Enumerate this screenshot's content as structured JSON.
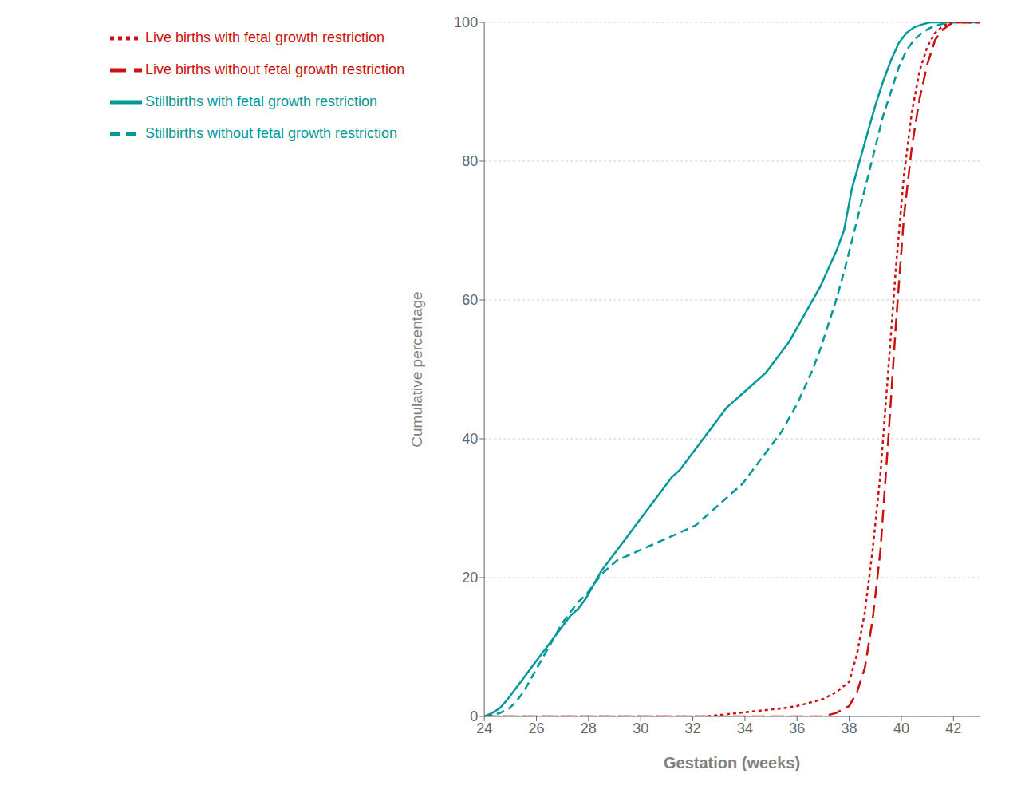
{
  "chart_data": {
    "type": "line",
    "xlabel": "Gestation (weeks)",
    "ylabel": "Cumulative percentage",
    "xlim": [
      24,
      43
    ],
    "ylim": [
      0,
      100
    ],
    "xticks": [
      24,
      26,
      28,
      30,
      32,
      34,
      36,
      38,
      40,
      42
    ],
    "yticks": [
      0,
      20,
      40,
      60,
      80,
      100
    ],
    "grid": "y",
    "legend": "top",
    "series": [
      {
        "name": "Stillbirths with fetal growth restriction",
        "color": "#009999",
        "line_style": "solid",
        "x": [
          24,
          24.3,
          24.6,
          24.9,
          25.2,
          25.5,
          25.8,
          26.1,
          26.4,
          26.7,
          27.0,
          27.3,
          27.6,
          27.9,
          28.2,
          28.5,
          28.8,
          29.1,
          29.4,
          29.7,
          30.0,
          30.3,
          30.6,
          30.9,
          31.2,
          31.5,
          31.8,
          32.1,
          32.4,
          32.7,
          33.0,
          33.3,
          33.6,
          33.9,
          34.2,
          34.5,
          34.8,
          35.1,
          35.4,
          35.7,
          36.0,
          36.3,
          36.6,
          36.9,
          37.2,
          37.5,
          37.8,
          38.1,
          38.4,
          38.7,
          39.0,
          39.3,
          39.6,
          39.9,
          40.2,
          40.5,
          40.8,
          41.1,
          41.4,
          41.7,
          42.0,
          42.3,
          42.6,
          43.0
        ],
        "values": [
          0,
          0.5,
          1.2,
          2.5,
          4.0,
          5.5,
          7.0,
          8.5,
          10.0,
          11.5,
          13.0,
          14.5,
          15.5,
          17.0,
          19.0,
          21.0,
          22.5,
          24.0,
          25.5,
          27.0,
          28.5,
          30.0,
          31.5,
          33.0,
          34.5,
          35.5,
          37.0,
          38.5,
          40.0,
          41.5,
          43.0,
          44.5,
          45.5,
          46.5,
          47.5,
          48.5,
          49.5,
          51.0,
          52.5,
          54.0,
          56.0,
          58.0,
          60.0,
          62.0,
          64.5,
          67.0,
          70.0,
          76.0,
          80.0,
          84.0,
          88.0,
          91.5,
          94.5,
          97.0,
          98.5,
          99.3,
          99.7,
          100.0,
          100.0,
          100.0,
          100.0,
          100.0,
          100.0,
          100.0
        ]
      },
      {
        "name": "Stillbirths without fetal growth restriction",
        "color": "#009999",
        "line_style": "dashed",
        "x": [
          24,
          24.3,
          24.6,
          24.9,
          25.2,
          25.5,
          25.8,
          26.1,
          26.4,
          26.7,
          27.0,
          27.3,
          27.6,
          27.9,
          28.2,
          28.5,
          28.8,
          29.1,
          29.4,
          29.7,
          30.0,
          30.3,
          30.6,
          30.9,
          31.2,
          31.5,
          31.8,
          32.1,
          32.4,
          32.7,
          33.0,
          33.3,
          33.6,
          33.9,
          34.2,
          34.5,
          34.8,
          35.1,
          35.4,
          35.7,
          36.0,
          36.3,
          36.6,
          36.9,
          37.2,
          37.5,
          37.8,
          38.1,
          38.4,
          38.7,
          39.0,
          39.3,
          39.6,
          39.9,
          40.2,
          40.5,
          40.8,
          41.1,
          41.4,
          41.7,
          42.0,
          42.3,
          42.6,
          43.0
        ],
        "values": [
          0,
          0.2,
          0.5,
          1.0,
          2.0,
          3.5,
          5.5,
          7.5,
          9.5,
          11.5,
          13.5,
          15.0,
          16.5,
          17.5,
          19.0,
          20.5,
          21.5,
          22.5,
          23.0,
          23.5,
          24.0,
          24.5,
          25.0,
          25.5,
          26.0,
          26.5,
          27.0,
          27.5,
          28.5,
          29.5,
          30.5,
          31.5,
          32.5,
          33.5,
          35.0,
          36.5,
          38.0,
          39.5,
          41.0,
          43.0,
          45.0,
          47.5,
          50.0,
          53.0,
          56.5,
          60.0,
          64.0,
          68.5,
          73.0,
          77.5,
          82.0,
          86.5,
          90.0,
          93.5,
          96.0,
          97.5,
          98.5,
          99.2,
          99.6,
          99.9,
          100.0,
          100.0,
          100.0,
          100.0
        ]
      },
      {
        "name": "Live births with fetal growth restriction",
        "color": "#CC1111",
        "line_style": "dotted",
        "x": [
          24,
          24.5,
          25.0,
          25.5,
          26.0,
          26.5,
          27.0,
          27.5,
          28.0,
          28.5,
          29.0,
          29.5,
          30.0,
          30.5,
          31.0,
          31.5,
          32.0,
          32.5,
          33.0,
          33.5,
          34.0,
          34.5,
          35.0,
          35.5,
          36.0,
          36.5,
          37.0,
          37.5,
          38.0,
          38.3,
          38.6,
          38.9,
          39.2,
          39.5,
          39.8,
          40.1,
          40.4,
          40.7,
          41.0,
          41.3,
          41.6,
          41.9,
          42.2,
          42.5,
          43.0
        ],
        "values": [
          0,
          0,
          0,
          0,
          0,
          0,
          0,
          0,
          0,
          0,
          0,
          0,
          0,
          0,
          0,
          0,
          0,
          0,
          0.2,
          0.4,
          0.6,
          0.8,
          1.0,
          1.2,
          1.5,
          2.0,
          2.5,
          3.5,
          5.0,
          9.0,
          15.0,
          24.0,
          35.0,
          50.0,
          65.0,
          78.0,
          87.0,
          93.0,
          96.5,
          98.5,
          99.5,
          100.0,
          100.0,
          100.0,
          100.0
        ]
      },
      {
        "name": "Live births without fetal growth restriction",
        "color": "#CC1111",
        "line_style": "longdash",
        "x": [
          24,
          24.5,
          25.0,
          25.5,
          26.0,
          26.5,
          27.0,
          27.5,
          28.0,
          28.5,
          29.0,
          29.5,
          30.0,
          30.5,
          31.0,
          31.5,
          32.0,
          32.5,
          33.0,
          33.5,
          34.0,
          34.5,
          35.0,
          35.5,
          36.0,
          36.5,
          37.0,
          37.5,
          38.0,
          38.3,
          38.6,
          38.9,
          39.2,
          39.5,
          39.8,
          40.1,
          40.4,
          40.7,
          41.0,
          41.3,
          41.6,
          41.9,
          42.2,
          42.5,
          43.0
        ],
        "values": [
          0,
          0,
          0,
          0,
          0,
          0,
          0,
          0,
          0,
          0,
          0,
          0,
          0,
          0,
          0,
          0,
          0,
          0,
          0,
          0,
          0,
          0,
          0,
          0,
          0,
          0,
          0,
          0.5,
          1.5,
          3.5,
          7.0,
          14.0,
          24.0,
          40.0,
          57.0,
          72.0,
          82.0,
          89.0,
          94.0,
          97.5,
          99.0,
          99.8,
          100.0,
          100.0,
          100.0
        ]
      }
    ]
  }
}
